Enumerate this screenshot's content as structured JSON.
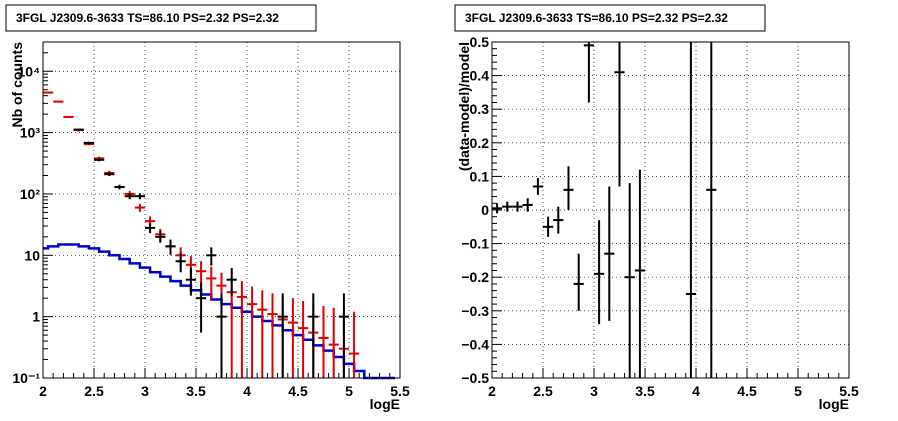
{
  "chart_data": [
    {
      "type": "line",
      "title": "3FGL J2309.6-3633 TS=86.10 PS=2.32 PS=2.32",
      "xlabel": "logE",
      "ylabel": "Nb of counts",
      "xlim": [
        2,
        5.5
      ],
      "ylim": [
        0.1,
        30000
      ],
      "yscale": "log",
      "grid": true,
      "xticks": [
        "2",
        "2.5",
        "3",
        "3.5",
        "4",
        "4.5",
        "5",
        "5.5"
      ],
      "yticks": [
        {
          "value": 0.1,
          "label": "10⁻¹"
        },
        {
          "value": 1,
          "label": "1"
        },
        {
          "value": 10,
          "label": "10"
        },
        {
          "value": 100,
          "label": "10²"
        },
        {
          "value": 1000,
          "label": "10³"
        },
        {
          "value": 10000,
          "label": "10⁴"
        }
      ],
      "bin_width": 0.1,
      "series": [
        {
          "kind": "step",
          "color": "#0000cc",
          "bin_low": [
            1.95,
            2.05,
            2.15,
            2.25,
            2.35,
            2.45,
            2.55,
            2.65,
            2.75,
            2.85,
            2.95,
            3.05,
            3.15,
            3.25,
            3.35,
            3.45,
            3.55,
            3.65,
            3.75,
            3.85,
            3.95,
            4.05,
            4.15,
            4.25,
            4.35,
            4.45,
            4.55,
            4.65,
            4.75,
            4.85,
            4.95,
            5.05,
            5.15,
            5.25,
            5.35
          ],
          "values": [
            13,
            14,
            15,
            15,
            14,
            13,
            11.5,
            10,
            8.7,
            7.4,
            6.3,
            5.3,
            4.5,
            3.8,
            3.2,
            2.7,
            2.3,
            1.9,
            1.6,
            1.4,
            1.2,
            1.0,
            0.85,
            0.72,
            0.6,
            0.5,
            0.42,
            0.34,
            0.28,
            0.22,
            0.17,
            0.13,
            0.1,
            0.1,
            0.1
          ]
        },
        {
          "kind": "errorbar",
          "color": "#dd0000",
          "x": [
            2.05,
            2.15,
            2.25,
            2.35,
            2.45,
            2.55,
            2.65,
            2.75,
            2.85,
            2.95,
            3.05,
            3.15,
            3.25,
            3.35,
            3.45,
            3.55,
            3.65,
            3.75,
            3.85,
            3.95,
            4.05,
            4.15,
            4.25,
            4.35,
            4.45,
            4.55,
            4.65,
            4.75,
            4.85,
            4.95,
            5.05
          ],
          "y": [
            4500,
            3200,
            1800,
            1100,
            650,
            380,
            220,
            130,
            100,
            60,
            36,
            22,
            14,
            10,
            7,
            5.5,
            4.2,
            3.2,
            2.5,
            2.1,
            1.6,
            1.3,
            1.1,
            0.9,
            0.8,
            0.65,
            0.55,
            0.45,
            0.35,
            0.3,
            0.25
          ],
          "ylow": [
            4400,
            3100,
            1750,
            1050,
            620,
            355,
            200,
            118,
            88,
            51,
            29,
            17,
            10,
            6.5,
            4.3,
            3,
            1.9,
            1.2,
            0.1,
            0.1,
            0.1,
            0.1,
            0.1,
            0.1,
            0.1,
            0.1,
            0.1,
            0.1,
            0.1,
            0.1,
            0.1
          ],
          "yhigh": [
            4600,
            3300,
            1850,
            1150,
            680,
            405,
            240,
            142,
            112,
            69,
            43,
            27,
            18,
            13.5,
            9.7,
            8,
            6.5,
            5.2,
            4.2,
            3.8,
            3.1,
            2.7,
            2.4,
            2.1,
            2.0,
            1.8,
            1.6,
            1.5,
            1.4,
            1.3,
            1.2
          ]
        },
        {
          "kind": "errorbar",
          "color": "#000000",
          "x": [
            2.35,
            2.45,
            2.55,
            2.65,
            2.75,
            2.85,
            2.95,
            3.05,
            3.15,
            3.25,
            3.35,
            3.45,
            3.55,
            3.65,
            3.75,
            3.85,
            4.35,
            4.65,
            4.95
          ],
          "y": [
            1120,
            680,
            360,
            210,
            130,
            92,
            92,
            28,
            20,
            14,
            8,
            4,
            2,
            10,
            1,
            4,
            1,
            1,
            1
          ],
          "ylow": [
            1080,
            650,
            340,
            196,
            120,
            82,
            82,
            23,
            16,
            10.5,
            5.3,
            2.2,
            0.55,
            6.8,
            0.1,
            2.2,
            0.1,
            0.1,
            0.1
          ],
          "yhigh": [
            1160,
            710,
            380,
            225,
            140,
            102,
            102,
            33,
            25,
            18,
            11,
            6.2,
            3.6,
            13.5,
            2.4,
            6.2,
            2.4,
            2.4,
            2.4
          ]
        }
      ]
    },
    {
      "type": "scatter",
      "title": "3FGL J2309.6-3633 TS=86.10 PS=2.32 PS=2.32",
      "xlabel": "logE",
      "ylabel": "(data-model)/model",
      "xlim": [
        2,
        5.5
      ],
      "ylim": [
        -0.5,
        0.5
      ],
      "grid": true,
      "xticks": [
        "2",
        "2.5",
        "3",
        "3.5",
        "4",
        "4.5",
        "5",
        "5.5"
      ],
      "yticks": [
        "−0.5",
        "−0.4",
        "−0.3",
        "−0.2",
        "−0.1",
        "0",
        "0.1",
        "0.2",
        "0.3",
        "0.4",
        "0.5"
      ],
      "bin_width": 0.1,
      "series": [
        {
          "kind": "errorbar",
          "color": "#000000",
          "x": [
            2.05,
            2.15,
            2.25,
            2.35,
            2.45,
            2.55,
            2.65,
            2.75,
            2.85,
            2.95,
            3.05,
            3.15,
            3.25,
            3.35,
            3.45,
            3.95,
            4.15
          ],
          "y": [
            0.005,
            0.01,
            0.01,
            0.015,
            0.07,
            -0.05,
            -0.03,
            0.06,
            -0.22,
            0.49,
            -0.19,
            -0.13,
            0.41,
            -0.2,
            -0.18,
            -0.25,
            0.06
          ],
          "ylow": [
            -0.01,
            -0.005,
            -0.005,
            -0.005,
            0.045,
            -0.08,
            -0.07,
            0.0,
            -0.3,
            0.32,
            -0.34,
            -0.33,
            0.07,
            -0.5,
            -0.5,
            -0.5,
            -0.5
          ],
          "yhigh": [
            0.02,
            0.025,
            0.025,
            0.035,
            0.095,
            -0.02,
            0.01,
            0.13,
            -0.13,
            0.5,
            -0.03,
            0.07,
            0.5,
            0.08,
            0.12,
            0.5,
            0.5
          ]
        }
      ]
    }
  ]
}
